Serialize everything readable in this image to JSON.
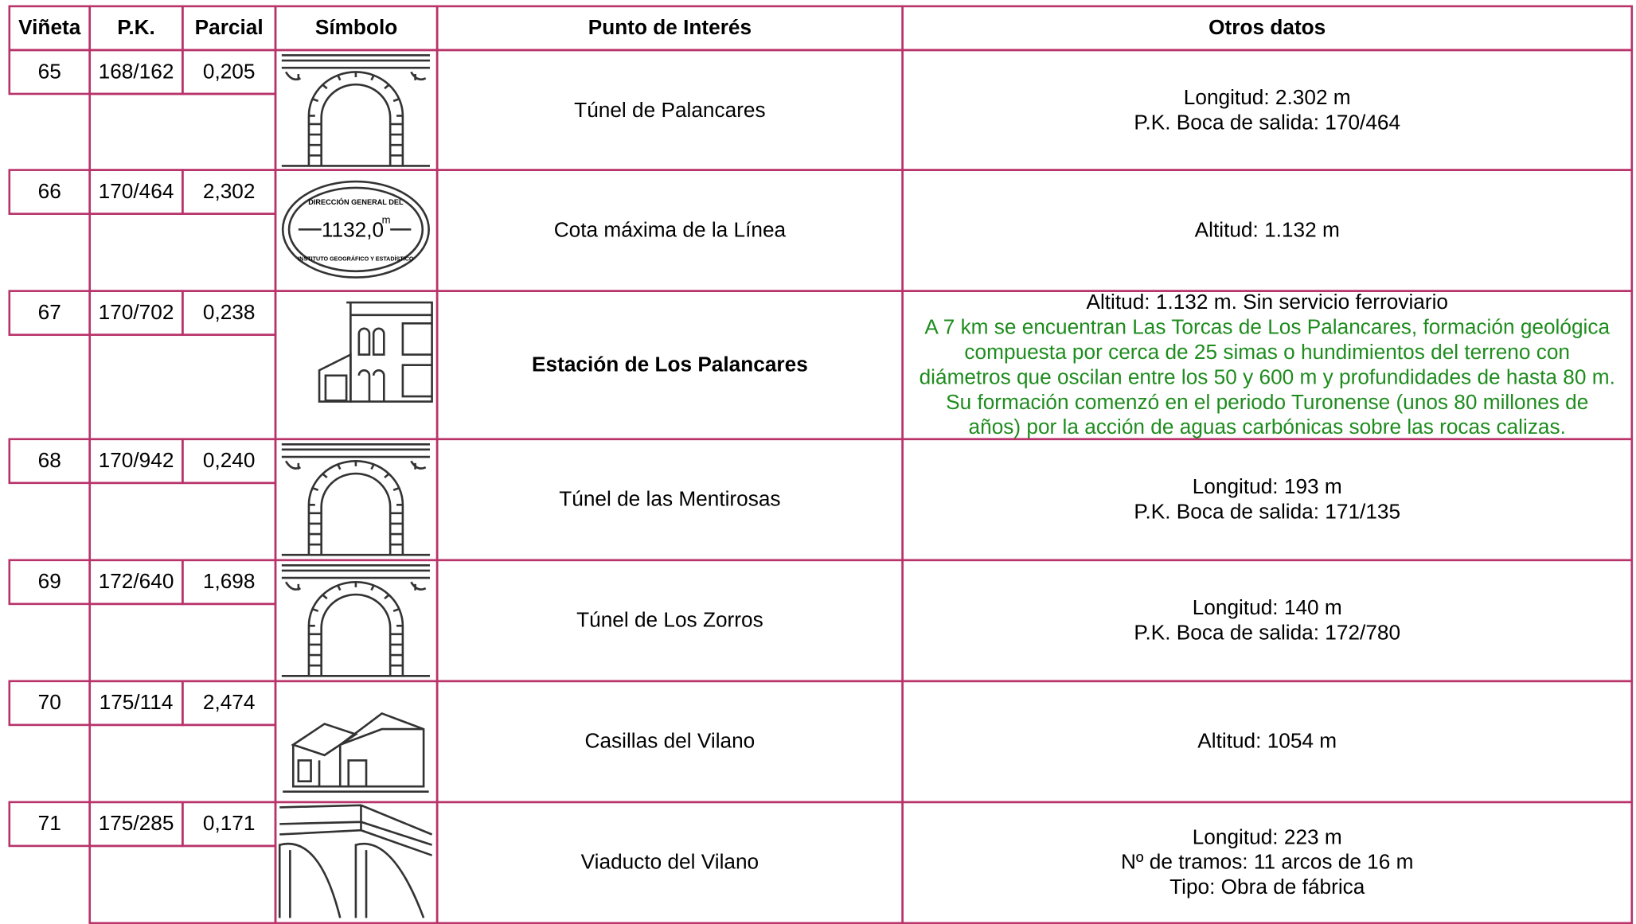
{
  "table": {
    "header": [
      "Viñeta",
      "P.K.",
      "Parcial",
      "Símbolo",
      "Punto de Interés",
      "Otros datos"
    ],
    "rows": [
      {
        "vineta": "65",
        "pk": "168/162",
        "parcial": "0,205",
        "punto": "Túnel de Palancares",
        "otros": [
          "Longitud: 2.302 m",
          "P.K. Boca de salida: 170/464"
        ]
      },
      {
        "vineta": "66",
        "pk": "170/464",
        "parcial": "2,302",
        "symbol": {
          "top": "DIRECCIÓN GENERAL DEL",
          "value": "1132,0",
          "unit": "m",
          "bottom": "INSTITUTO GEOGRÁFICO Y ESTADÍSTICO"
        },
        "punto": "Cota máxima de la Línea",
        "otros": [
          "Altitud: 1.132 m"
        ]
      },
      {
        "vineta": "67",
        "pk": "170/702",
        "parcial": "0,238",
        "punto": "Estación de Los Palancares",
        "otros": [
          "Altitud: 1.132 m. Sin servicio ferroviario"
        ],
        "nota": [
          "A 7 km se encuentran Las Torcas de Los Palancares, formación geológica",
          "compuesta por cerca de 25 simas o hundimientos del terreno con",
          "diámetros que oscilan entre los 50 y 600 m y profundidades de hasta 80 m.",
          "Su formación comenzó en el periodo Turonense (unos 80 millones de",
          "años) por la acción de aguas carbónicas sobre las rocas calizas."
        ]
      },
      {
        "vineta": "68",
        "pk": "170/942",
        "parcial": "0,240",
        "punto": "Túnel de las Mentirosas",
        "otros": [
          "Longitud: 193 m",
          "P.K. Boca de salida: 171/135"
        ]
      },
      {
        "vineta": "69",
        "pk": "172/640",
        "parcial": "1,698",
        "punto": "Túnel de Los Zorros",
        "otros": [
          "Longitud: 140 m",
          "P.K. Boca de salida: 172/780"
        ]
      },
      {
        "vineta": "70",
        "pk": "175/114",
        "parcial": "2,474",
        "punto": "Casillas del Vilano",
        "otros": [
          "Altitud: 1054 m"
        ]
      },
      {
        "vineta": "71",
        "pk": "175/285",
        "parcial": "0,171",
        "punto": "Viaducto del Vilano",
        "otros": [
          "Longitud: 223 m",
          "Nº de tramos: 11 arcos de 16 m",
          "Tipo: Obra de fábrica"
        ]
      }
    ]
  }
}
